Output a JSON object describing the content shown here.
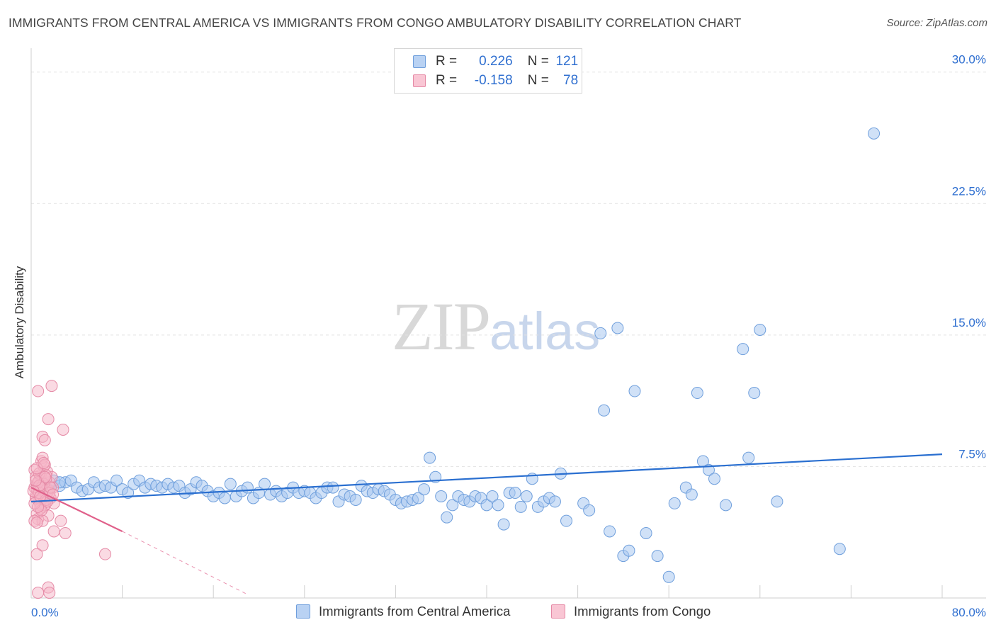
{
  "chart_data": {
    "type": "scatter",
    "title": "IMMIGRANTS FROM CENTRAL AMERICA VS IMMIGRANTS FROM CONGO AMBULATORY DISABILITY CORRELATION CHART",
    "source": "Source: ZipAtlas.com",
    "ylabel": "Ambulatory Disability",
    "xlim": [
      0,
      80
    ],
    "ylim": [
      0,
      31
    ],
    "x_tick_labels": [
      "0.0%",
      "80.0%"
    ],
    "y_ticks": [
      7.5,
      15.0,
      22.5,
      30.0
    ],
    "y_tick_labels": [
      "7.5%",
      "15.0%",
      "22.5%",
      "30.0%"
    ],
    "grid": true,
    "watermark": {
      "zip": "ZIP",
      "atlas": "atlas"
    },
    "colors": {
      "blue_fill": "#a9c8f0",
      "blue_stroke": "#6f9fdc",
      "blue_line": "#2a6fd0",
      "pink_fill": "#f6b6c8",
      "pink_stroke": "#e58aa6",
      "pink_line": "#e0608a",
      "tick_text": "#2f6fd0"
    },
    "legend": {
      "rows": [
        {
          "r_label": "R =",
          "r_value": "0.226",
          "n_label": "N =",
          "n_value": "121"
        },
        {
          "r_label": "R =",
          "r_value": "-0.158",
          "n_label": "N =",
          "n_value": "78"
        }
      ]
    },
    "series": [
      {
        "name": "Immigrants from Central America",
        "trend": {
          "x": [
            0,
            80
          ],
          "y": [
            5.5,
            8.2
          ]
        },
        "points": [
          [
            1.2,
            6.5
          ],
          [
            1.5,
            6.2
          ],
          [
            2.0,
            6.7
          ],
          [
            2.5,
            6.4
          ],
          [
            3.0,
            6.6
          ],
          [
            3.5,
            6.7
          ],
          [
            4.0,
            6.3
          ],
          [
            4.5,
            6.1
          ],
          [
            5.0,
            6.2
          ],
          [
            5.5,
            6.6
          ],
          [
            6.0,
            6.3
          ],
          [
            6.5,
            6.4
          ],
          [
            7.0,
            6.3
          ],
          [
            7.5,
            6.7
          ],
          [
            8.0,
            6.2
          ],
          [
            8.5,
            6.0
          ],
          [
            9.0,
            6.5
          ],
          [
            9.5,
            6.7
          ],
          [
            10.0,
            6.3
          ],
          [
            10.5,
            6.5
          ],
          [
            11.0,
            6.4
          ],
          [
            11.5,
            6.3
          ],
          [
            12.0,
            6.5
          ],
          [
            12.5,
            6.3
          ],
          [
            13.0,
            6.4
          ],
          [
            13.5,
            6.0
          ],
          [
            14.0,
            6.2
          ],
          [
            14.5,
            6.6
          ],
          [
            15.0,
            6.4
          ],
          [
            15.5,
            6.1
          ],
          [
            16.0,
            5.8
          ],
          [
            16.5,
            6.0
          ],
          [
            17.0,
            5.7
          ],
          [
            17.5,
            6.5
          ],
          [
            18.0,
            5.8
          ],
          [
            18.5,
            6.1
          ],
          [
            19.0,
            6.3
          ],
          [
            19.5,
            5.7
          ],
          [
            20.0,
            6.0
          ],
          [
            20.5,
            6.5
          ],
          [
            21.0,
            5.9
          ],
          [
            21.5,
            6.1
          ],
          [
            22.0,
            5.8
          ],
          [
            22.5,
            6.0
          ],
          [
            23.0,
            6.3
          ],
          [
            23.5,
            6.0
          ],
          [
            24.0,
            6.1
          ],
          [
            24.5,
            6.0
          ],
          [
            25.0,
            5.7
          ],
          [
            25.5,
            6.0
          ],
          [
            26.0,
            6.3
          ],
          [
            26.5,
            6.3
          ],
          [
            27.0,
            5.5
          ],
          [
            27.5,
            5.9
          ],
          [
            28.0,
            5.8
          ],
          [
            28.5,
            5.6
          ],
          [
            29.0,
            6.4
          ],
          [
            29.5,
            6.1
          ],
          [
            30.0,
            6.0
          ],
          [
            30.5,
            6.2
          ],
          [
            31.0,
            6.1
          ],
          [
            31.5,
            5.9
          ],
          [
            32.0,
            5.6
          ],
          [
            32.5,
            5.4
          ],
          [
            33.0,
            5.5
          ],
          [
            33.5,
            5.6
          ],
          [
            34.0,
            5.7
          ],
          [
            34.5,
            6.2
          ],
          [
            35.0,
            8.0
          ],
          [
            35.5,
            6.9
          ],
          [
            36.0,
            5.8
          ],
          [
            36.5,
            4.6
          ],
          [
            37.0,
            5.3
          ],
          [
            37.5,
            5.8
          ],
          [
            38.0,
            5.6
          ],
          [
            38.5,
            5.5
          ],
          [
            39.0,
            5.8
          ],
          [
            39.5,
            5.7
          ],
          [
            40.0,
            5.3
          ],
          [
            40.5,
            5.8
          ],
          [
            41.0,
            5.3
          ],
          [
            41.5,
            4.2
          ],
          [
            42.0,
            6.0
          ],
          [
            42.5,
            6.0
          ],
          [
            43.0,
            5.2
          ],
          [
            43.5,
            5.8
          ],
          [
            44.0,
            6.8
          ],
          [
            44.5,
            5.2
          ],
          [
            45.0,
            5.5
          ],
          [
            45.5,
            5.7
          ],
          [
            46.0,
            5.5
          ],
          [
            46.5,
            7.1
          ],
          [
            47.0,
            4.4
          ],
          [
            48.5,
            5.4
          ],
          [
            49.0,
            5.0
          ],
          [
            50.0,
            15.1
          ],
          [
            50.3,
            10.7
          ],
          [
            50.8,
            3.8
          ],
          [
            51.5,
            15.4
          ],
          [
            52.0,
            2.4
          ],
          [
            52.5,
            2.7
          ],
          [
            53.0,
            11.8
          ],
          [
            54.0,
            3.7
          ],
          [
            55.0,
            2.4
          ],
          [
            56.0,
            1.2
          ],
          [
            56.5,
            5.4
          ],
          [
            57.5,
            6.3
          ],
          [
            58.0,
            5.9
          ],
          [
            58.5,
            11.7
          ],
          [
            59.0,
            7.8
          ],
          [
            59.5,
            7.3
          ],
          [
            60.0,
            6.8
          ],
          [
            61.0,
            5.3
          ],
          [
            62.5,
            14.2
          ],
          [
            63.0,
            8.0
          ],
          [
            63.5,
            11.7
          ],
          [
            64.0,
            15.3
          ],
          [
            65.5,
            5.5
          ],
          [
            71.0,
            2.8
          ],
          [
            74.0,
            26.5
          ],
          [
            2.5,
            6.6
          ]
        ]
      },
      {
        "name": "Immigrants from Congo",
        "trend": {
          "x": [
            0,
            8
          ],
          "y": [
            6.3,
            3.8
          ]
        },
        "trend_extension": {
          "x": [
            8,
            19
          ],
          "y": [
            3.8,
            0.2
          ]
        },
        "points": [
          [
            0.3,
            6.3
          ],
          [
            0.4,
            5.8
          ],
          [
            0.5,
            6.5
          ],
          [
            0.6,
            6.0
          ],
          [
            0.7,
            5.5
          ],
          [
            0.8,
            7.0
          ],
          [
            0.9,
            6.2
          ],
          [
            1.0,
            6.8
          ],
          [
            1.1,
            5.2
          ],
          [
            1.2,
            6.4
          ],
          [
            1.3,
            5.9
          ],
          [
            1.4,
            7.2
          ],
          [
            1.5,
            6.1
          ],
          [
            1.6,
            6.6
          ],
          [
            1.7,
            5.7
          ],
          [
            1.8,
            6.9
          ],
          [
            1.9,
            6.3
          ],
          [
            2.0,
            5.4
          ],
          [
            0.3,
            7.3
          ],
          [
            0.5,
            4.8
          ],
          [
            0.6,
            4.5
          ],
          [
            0.7,
            6.7
          ],
          [
            0.8,
            5.3
          ],
          [
            0.9,
            7.8
          ],
          [
            1.0,
            8.0
          ],
          [
            1.1,
            7.5
          ],
          [
            1.2,
            7.6
          ],
          [
            1.3,
            7.0
          ],
          [
            1.4,
            6.0
          ],
          [
            1.5,
            4.7
          ],
          [
            0.4,
            6.9
          ],
          [
            0.5,
            6.2
          ],
          [
            0.6,
            5.9
          ],
          [
            0.7,
            7.1
          ],
          [
            0.8,
            6.4
          ],
          [
            0.9,
            5.6
          ],
          [
            1.0,
            6.1
          ],
          [
            1.1,
            6.5
          ],
          [
            1.2,
            5.3
          ],
          [
            1.3,
            6.8
          ],
          [
            0.4,
            5.7
          ],
          [
            0.5,
            7.4
          ],
          [
            0.6,
            6.6
          ],
          [
            0.7,
            6.0
          ],
          [
            0.8,
            5.1
          ],
          [
            0.9,
            6.3
          ],
          [
            1.0,
            4.4
          ],
          [
            1.1,
            7.7
          ],
          [
            1.2,
            6.9
          ],
          [
            1.3,
            5.6
          ],
          [
            0.6,
            11.8
          ],
          [
            1.0,
            9.2
          ],
          [
            1.2,
            9.0
          ],
          [
            1.5,
            10.2
          ],
          [
            1.8,
            12.1
          ],
          [
            2.8,
            9.6
          ],
          [
            2.0,
            3.8
          ],
          [
            3.0,
            3.7
          ],
          [
            2.6,
            4.4
          ],
          [
            1.0,
            3.0
          ],
          [
            0.5,
            2.5
          ],
          [
            6.5,
            2.5
          ],
          [
            1.5,
            0.6
          ],
          [
            0.6,
            0.3
          ],
          [
            1.6,
            0.3
          ],
          [
            0.3,
            4.4
          ],
          [
            0.5,
            4.3
          ],
          [
            0.7,
            6.4
          ],
          [
            0.9,
            5.0
          ],
          [
            1.4,
            5.5
          ],
          [
            1.6,
            6.0
          ],
          [
            1.7,
            6.3
          ],
          [
            1.9,
            5.9
          ],
          [
            0.2,
            6.1
          ],
          [
            0.3,
            5.4
          ],
          [
            0.4,
            6.7
          ],
          [
            0.6,
            5.2
          ],
          [
            0.8,
            5.8
          ]
        ]
      }
    ]
  }
}
